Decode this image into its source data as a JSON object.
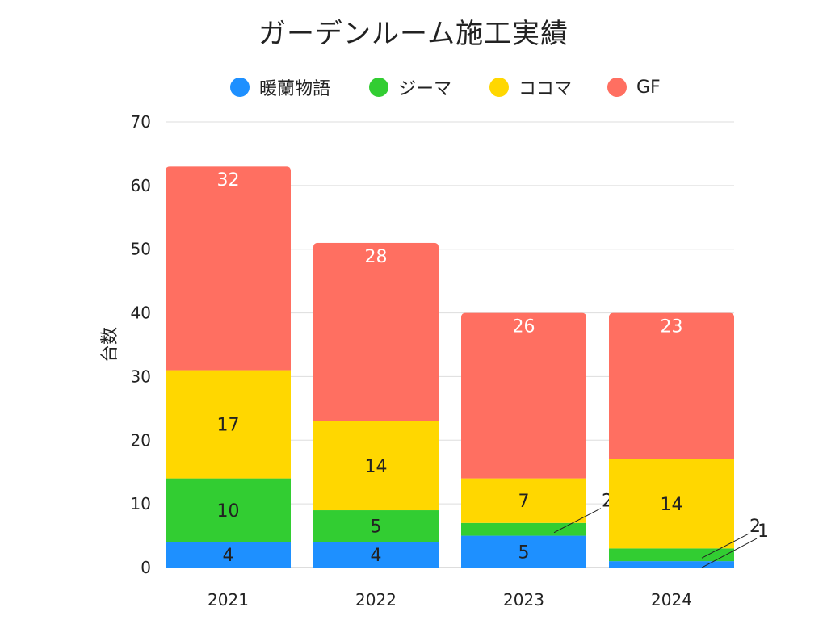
{
  "chart_data": {
    "type": "bar",
    "stacked": true,
    "title": "ガーデンルーム施工実績",
    "xlabel": "",
    "ylabel": "台数",
    "ylim": [
      0,
      70
    ],
    "yticks": [
      0,
      10,
      20,
      30,
      40,
      50,
      60,
      70
    ],
    "grid": true,
    "legend_position": "top",
    "categories": [
      "2021",
      "2022",
      "2023",
      "2024"
    ],
    "series": [
      {
        "name": "暖蘭物語",
        "color": "#1E90FF",
        "label_color": "#222222",
        "values": [
          4,
          4,
          5,
          1
        ]
      },
      {
        "name": "ジーマ",
        "color": "#32CD32",
        "label_color": "#222222",
        "values": [
          10,
          5,
          2,
          2
        ]
      },
      {
        "name": "ココマ",
        "color": "#FFD700",
        "label_color": "#222222",
        "values": [
          17,
          14,
          7,
          14
        ]
      },
      {
        "name": "GF",
        "color": "#FF6F61",
        "label_color": "#FFFFFF",
        "values": [
          32,
          28,
          26,
          23
        ]
      }
    ]
  }
}
